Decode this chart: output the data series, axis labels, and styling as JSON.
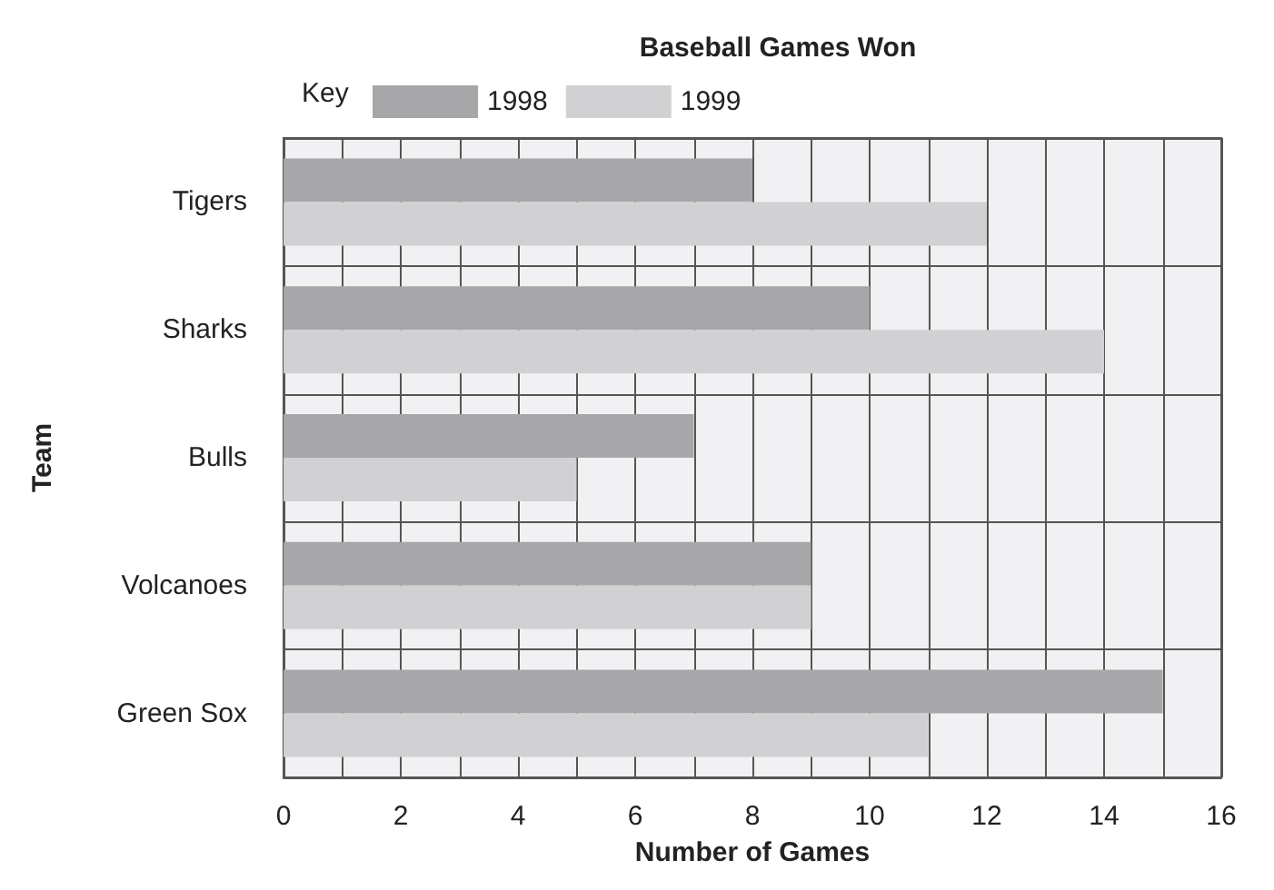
{
  "chart_data": {
    "type": "bar",
    "orientation": "horizontal",
    "title": "Baseball Games Won",
    "xlabel": "Number of Games",
    "ylabel": "Team",
    "legend_title": "Key",
    "legend": "top left",
    "grid": true,
    "categories": [
      "Tigers",
      "Sharks",
      "Bulls",
      "Volcanoes",
      "Green Sox"
    ],
    "series": [
      {
        "name": "1998",
        "color": "#a7a7a9",
        "values": [
          8,
          10,
          7,
          9,
          15
        ]
      },
      {
        "name": "1999",
        "color": "#d1d1d3",
        "values": [
          12,
          14,
          5,
          9,
          11
        ]
      }
    ],
    "xlim": [
      0,
      16
    ],
    "xticks": [
      0,
      {
        "value": 1,
        "label": null
      },
      2,
      {
        "value": 3,
        "label": null
      },
      4,
      {
        "value": 5,
        "label": null
      },
      6,
      {
        "value": 7,
        "label": null
      },
      8,
      {
        "value": 9,
        "label": null
      },
      10,
      {
        "value": 11,
        "label": null
      },
      12,
      {
        "value": 13,
        "label": null
      },
      14,
      {
        "value": 15,
        "label": null
      },
      16
    ]
  }
}
